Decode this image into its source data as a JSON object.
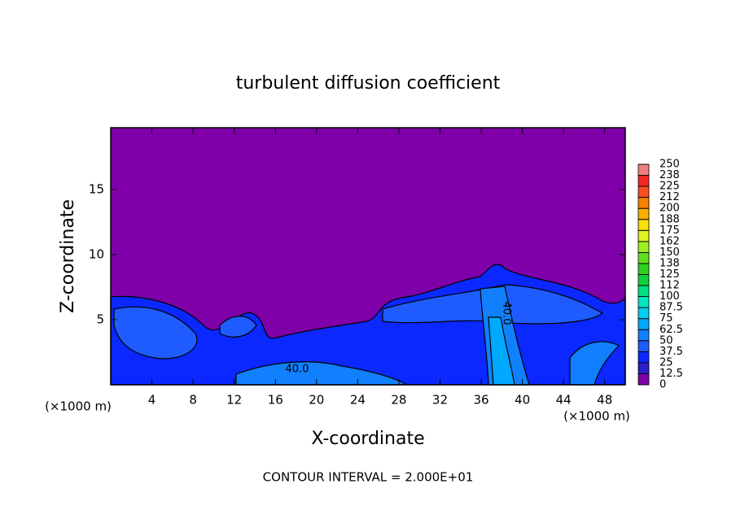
{
  "chart_data": {
    "type": "contour",
    "title": "turbulent diffusion coefficient",
    "xlabel": "X-coordinate",
    "ylabel": "Z-coordinate",
    "unit_labels": [
      "(×1000 m)",
      "(×1000 m)"
    ],
    "footnote": "CONTOUR INTERVAL = 2.000E+01",
    "contour_labels": [
      "40.0",
      "40.0"
    ],
    "xlim": [
      0,
      50
    ],
    "xticks": [
      4,
      8,
      12,
      16,
      20,
      24,
      28,
      32,
      36,
      40,
      44,
      48
    ],
    "ylim": [
      0,
      19.75
    ],
    "yticks": [
      5,
      10,
      15
    ],
    "colorbar_lim": [
      0,
      250
    ],
    "colorbar_ticks": [
      0,
      12.5,
      25,
      37.5,
      50,
      62.5,
      75,
      87.5,
      100,
      {
        "value": 112.5,
        "label": "112"
      },
      125,
      {
        "value": 137.5,
        "label": "138"
      },
      150,
      {
        "value": 162.5,
        "label": "162"
      },
      175,
      {
        "value": 187.5,
        "label": "188"
      },
      200,
      {
        "value": 212.5,
        "label": "212"
      },
      225,
      {
        "value": 237.5,
        "label": "238"
      },
      250
    ],
    "colors": [
      "#7f00a8",
      "#2a1fc8",
      "#0a28ff",
      "#1e5cff",
      "#1080ff",
      "#00a8ff",
      "#00d0f0",
      "#00e8c0",
      "#00e080",
      "#10d040",
      "#30d020",
      "#60e020",
      "#a0f020",
      "#e0f020",
      "#f8e000",
      "#f8b000",
      "#f88000",
      "#f85020",
      "#f02828",
      "#f08080"
    ]
  }
}
